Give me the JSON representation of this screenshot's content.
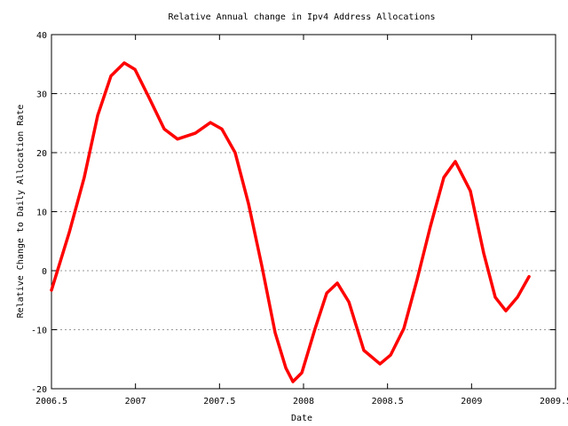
{
  "chart_data": {
    "type": "line",
    "title": "Relative Annual change in Ipv4 Address Allocations",
    "x_label": "Date",
    "y_label": "Relative Change to Daily Allocation Rate",
    "x": [
      2006.5,
      2006.606,
      2006.695,
      2006.775,
      2006.854,
      2006.933,
      2006.997,
      2007.081,
      2007.171,
      2007.25,
      2007.356,
      2007.446,
      2007.514,
      2007.593,
      2007.673,
      2007.752,
      2007.831,
      2007.895,
      2007.937,
      2007.99,
      2008.069,
      2008.138,
      2008.201,
      2008.27,
      2008.359,
      2008.455,
      2008.518,
      2008.597,
      2008.676,
      2008.755,
      2008.835,
      2008.903,
      2008.993,
      2009.072,
      2009.141,
      2009.204,
      2009.273,
      2009.342
    ],
    "series": [
      {
        "color": "#ff0000",
        "values": [
          -3.3,
          6.5,
          15.8,
          26.3,
          33,
          35.2,
          34.1,
          29.3,
          24,
          22.3,
          23.3,
          25.1,
          24,
          20,
          11.3,
          0.8,
          -10.5,
          -16.5,
          -18.8,
          -17.3,
          -9.8,
          -3.8,
          -2.1,
          -5.3,
          -13.5,
          -15.8,
          -14.3,
          -9.8,
          -1.5,
          7.5,
          15.8,
          18.5,
          13.5,
          3,
          -4.5,
          -6.8,
          -4.5,
          -1
        ]
      }
    ],
    "xlim": [
      2006.5,
      2009.5
    ],
    "xticks": [
      2006.5,
      2007,
      2007.5,
      2008,
      2008.5,
      2009,
      2009.5
    ],
    "ylim": [
      -20,
      40
    ],
    "yticks": [
      -20,
      -10,
      0,
      10,
      20,
      30,
      40
    ],
    "grid": "y"
  }
}
